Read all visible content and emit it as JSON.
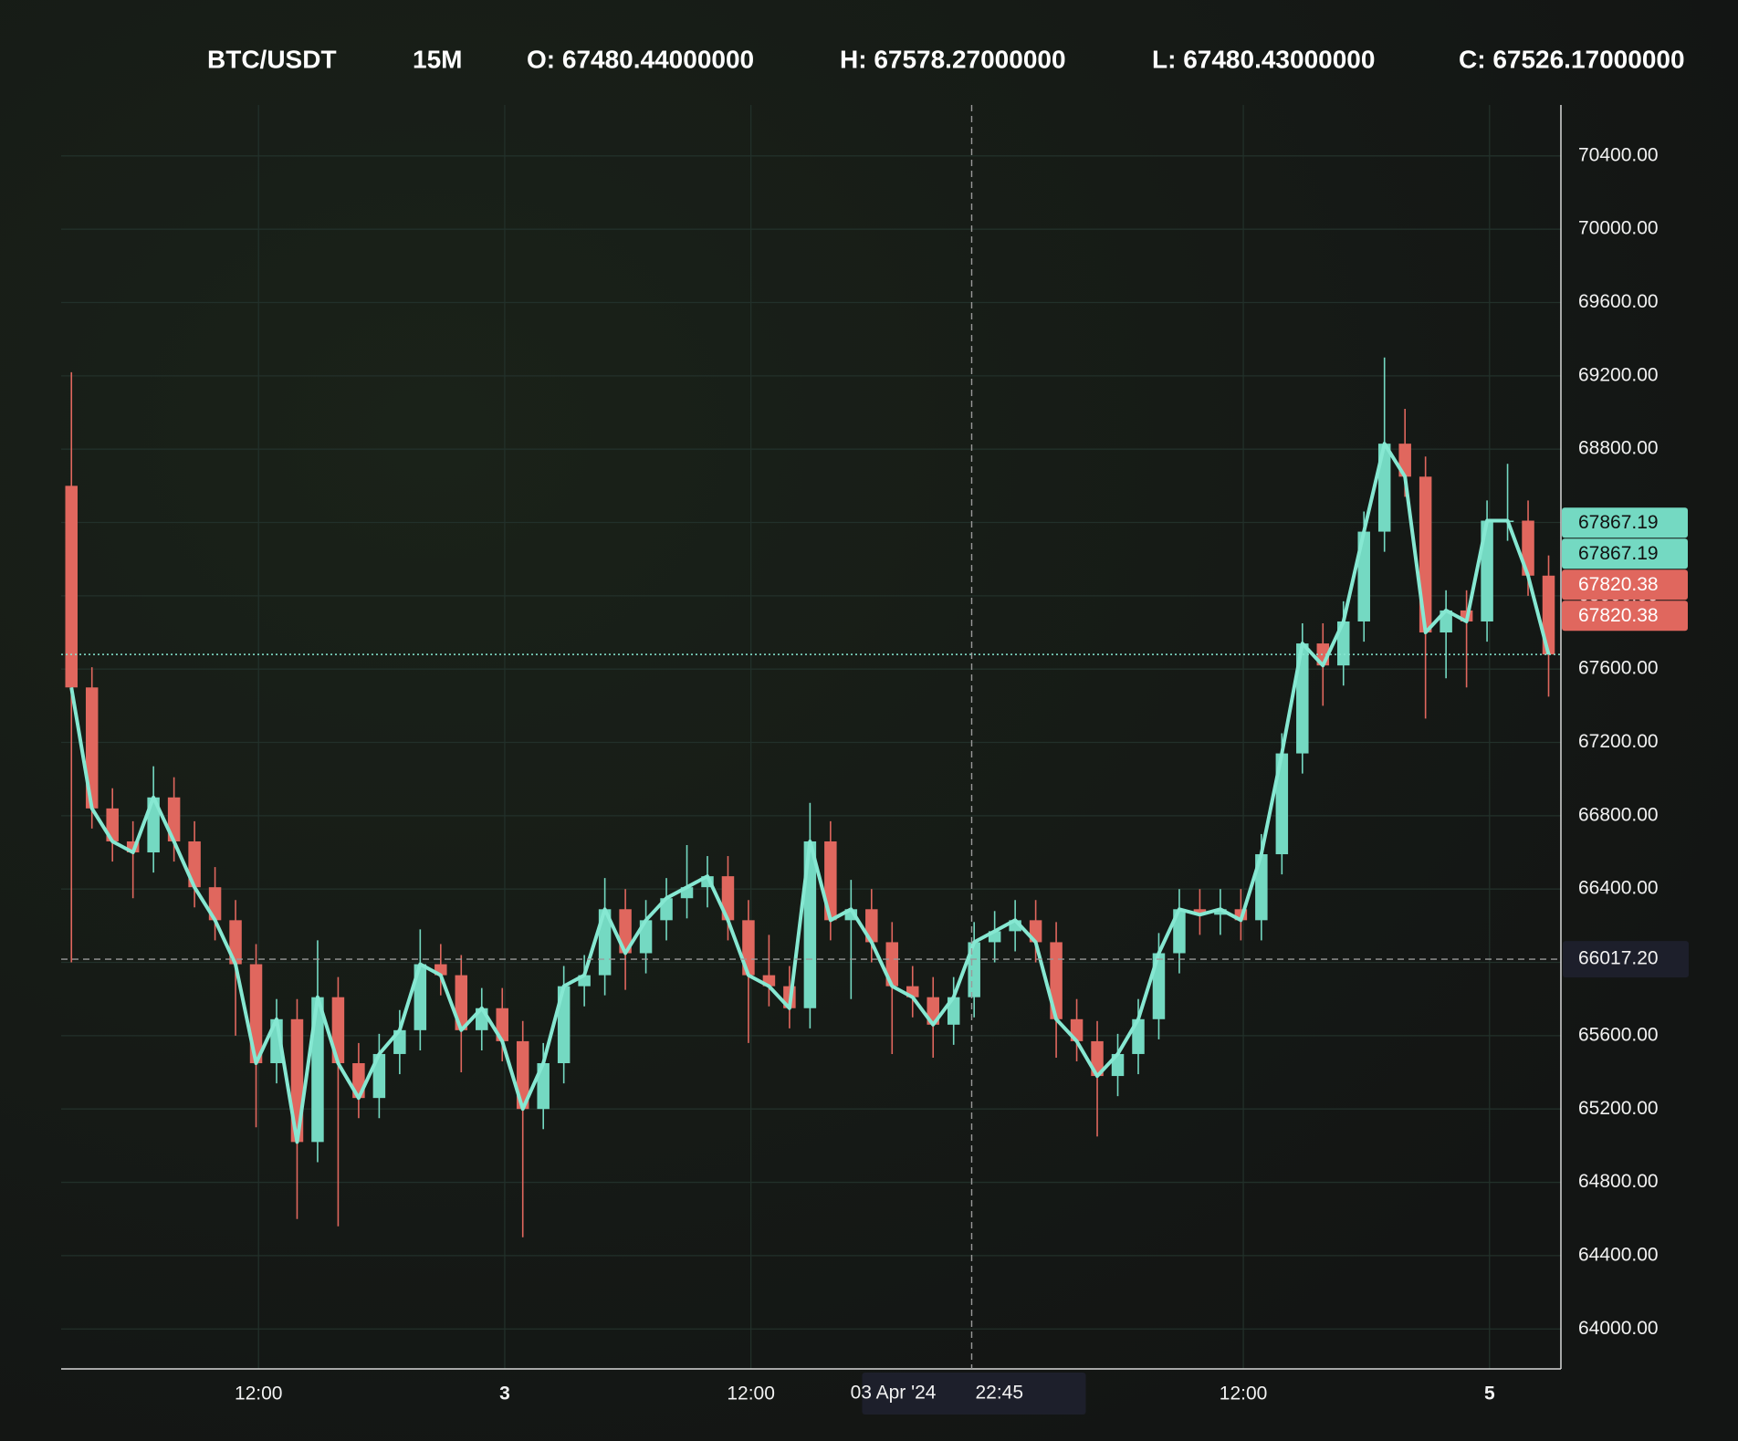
{
  "chart_data": {
    "type": "candlestick",
    "header": [
      "BTC/USDT",
      "15M",
      "O: 67480.44000000",
      "H: 67578.27000000",
      "L: 67480.43000000",
      "C: 67526.17000000"
    ],
    "x": [
      0,
      1,
      2,
      3,
      4,
      5,
      6,
      7,
      8,
      9,
      10,
      11,
      12,
      13,
      14,
      15,
      16,
      17,
      18,
      19,
      20,
      21,
      22,
      23,
      24,
      25,
      26,
      27,
      28,
      29,
      30,
      31,
      32,
      33,
      34,
      35,
      36,
      37,
      38,
      39,
      40,
      41,
      42,
      43,
      44,
      45,
      46,
      47,
      48,
      49,
      50,
      51,
      52,
      53,
      54,
      55,
      56,
      57,
      58,
      59,
      60,
      61,
      62,
      63,
      64,
      65,
      66,
      67,
      68,
      69,
      70,
      71,
      72
    ],
    "open": [
      68600,
      67500,
      66840,
      66660,
      66600,
      66900,
      66660,
      66410,
      66230,
      65990,
      65450,
      65690,
      65020,
      65810,
      65450,
      65260,
      65500,
      65630,
      65990,
      65930,
      65630,
      65750,
      65570,
      65200,
      65450,
      65870,
      65930,
      66290,
      66050,
      66230,
      66350,
      66410,
      66470,
      66230,
      65930,
      65870,
      65750,
      66660,
      66230,
      66290,
      66110,
      65870,
      65810,
      65660,
      65810,
      66110,
      66170,
      66230,
      66110,
      65690,
      65570,
      65380,
      65500,
      65690,
      66050,
      66290,
      66260,
      66290,
      66230,
      66590,
      67140,
      67740,
      67620,
      67860,
      68350,
      68830,
      68650,
      67800,
      67920,
      67860,
      68410,
      68410,
      68110
    ],
    "high": [
      69220,
      67610,
      66950,
      66770,
      67070,
      67010,
      66770,
      66520,
      66340,
      66100,
      65800,
      65800,
      66120,
      65920,
      65560,
      65610,
      65740,
      66180,
      66100,
      66040,
      65860,
      65860,
      65680,
      65560,
      65980,
      66040,
      66460,
      66400,
      66340,
      66460,
      66640,
      66580,
      66580,
      66340,
      66150,
      65980,
      66870,
      66770,
      66450,
      66400,
      66220,
      65980,
      65920,
      65920,
      66220,
      66280,
      66340,
      66340,
      66220,
      65800,
      65680,
      65610,
      65800,
      66160,
      66400,
      66400,
      66400,
      66400,
      66700,
      67250,
      67850,
      67850,
      67970,
      68460,
      69300,
      69020,
      68760,
      68030,
      68030,
      68520,
      68720,
      68520,
      68220
    ],
    "low": [
      66000,
      66730,
      66550,
      66350,
      66490,
      66550,
      66300,
      66120,
      65600,
      65100,
      65340,
      64600,
      64910,
      64560,
      65150,
      65150,
      65390,
      65520,
      65820,
      65400,
      65520,
      65460,
      64500,
      65090,
      65340,
      65760,
      65820,
      65850,
      65940,
      66120,
      66240,
      66300,
      66120,
      65560,
      65760,
      65640,
      65640,
      66120,
      65800,
      66000,
      65500,
      65700,
      65480,
      65550,
      65700,
      66000,
      66060,
      66000,
      65480,
      65460,
      65050,
      65270,
      65390,
      65580,
      65940,
      66150,
      66150,
      66120,
      66120,
      66480,
      67030,
      67400,
      67510,
      67750,
      68240,
      68540,
      67330,
      67550,
      67500,
      67750,
      68300,
      68000,
      67450
    ],
    "close": [
      67500,
      66840,
      66660,
      66600,
      66900,
      66660,
      66410,
      66230,
      65990,
      65450,
      65690,
      65020,
      65810,
      65450,
      65260,
      65500,
      65630,
      65990,
      65930,
      65630,
      65750,
      65570,
      65200,
      65450,
      65870,
      65930,
      66290,
      66050,
      66230,
      66350,
      66410,
      66470,
      66230,
      65930,
      65870,
      65750,
      66660,
      66230,
      66290,
      66110,
      65870,
      65810,
      65660,
      65810,
      66110,
      66170,
      66230,
      66110,
      65690,
      65570,
      65380,
      65500,
      65690,
      66050,
      66290,
      66260,
      66290,
      66230,
      66590,
      67140,
      67740,
      67620,
      67860,
      68350,
      68830,
      68650,
      67800,
      67920,
      67860,
      68410,
      68410,
      68110,
      67680
    ],
    "up_color": "#74d9c2",
    "down_color": "#e0675e",
    "line_color": "#86e8d2",
    "xlim": [
      -0.5,
      72.6
    ],
    "xticks": [
      {
        "value": 9.12,
        "label": "12:00"
      },
      {
        "value": 21.12,
        "label": "3"
      },
      {
        "value": 33.12,
        "label": "12:00"
      },
      {
        "value": 57.12,
        "label": "12:00"
      },
      {
        "value": 69.12,
        "label": "5"
      }
    ],
    "ylim": [
      63782,
      70678
    ],
    "yticks": [
      {
        "value": 64000,
        "label": "64000.00"
      },
      {
        "value": 64400,
        "label": "64400.00"
      },
      {
        "value": 64800,
        "label": "64800.00"
      },
      {
        "value": 65200,
        "label": "65200.00"
      },
      {
        "value": 65600,
        "label": "65600.00"
      },
      {
        "value": 66000,
        "label": "66000.00"
      },
      {
        "value": 66400,
        "label": "66400.00"
      },
      {
        "value": 66800,
        "label": "66800.00"
      },
      {
        "value": 67200,
        "label": "67200.00"
      },
      {
        "value": 67600,
        "label": "67600.00"
      },
      {
        "value": 68000,
        "label": "68000.00"
      },
      {
        "value": 68400,
        "label": "68400.00"
      },
      {
        "value": 68800,
        "label": "68800.00"
      },
      {
        "value": 69200,
        "label": "69200.00"
      },
      {
        "value": 69600,
        "label": "69600.00"
      },
      {
        "value": 70000,
        "label": "70000.00"
      },
      {
        "value": 70400,
        "label": "70400.00"
      }
    ],
    "grid": true,
    "price_labels": [
      {
        "value": 67867.19,
        "color": "#74d9c2"
      },
      {
        "value": 67867.19,
        "color": "#74d9c2"
      },
      {
        "value": 67820.38,
        "color": "#e0675e"
      },
      {
        "value": 67820.38,
        "color": "#e0675e"
      }
    ],
    "crosshair": {
      "x": 43.88,
      "date": "03 Apr '24",
      "time": "22:45",
      "y": {
        "value": 66017.2,
        "label": "66017.20"
      }
    }
  }
}
